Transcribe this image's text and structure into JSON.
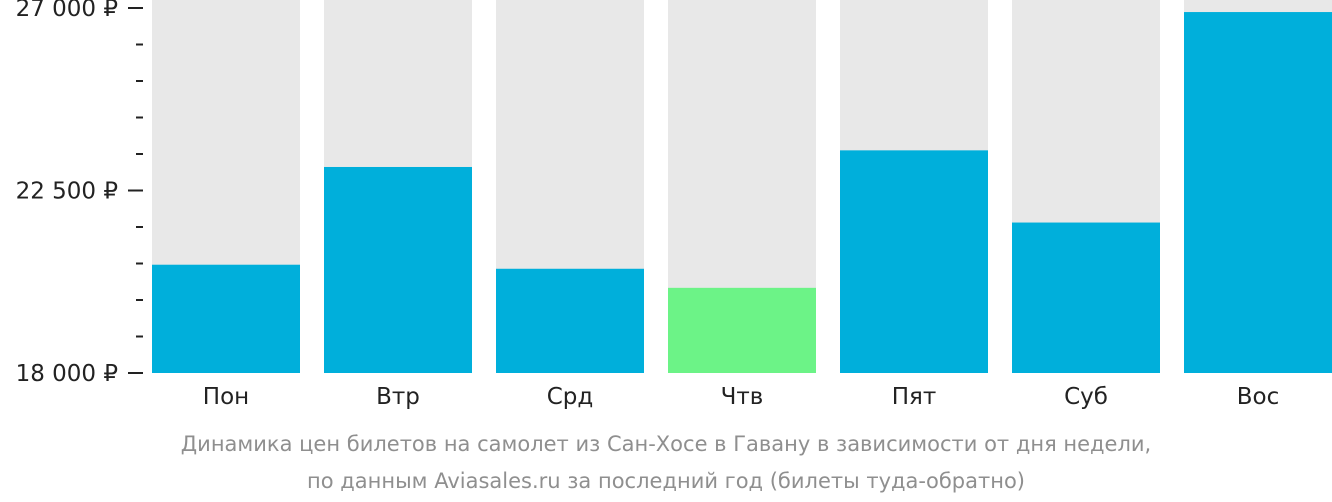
{
  "chart_data": {
    "type": "bar",
    "categories": [
      "Пон",
      "Втр",
      "Срд",
      "Чтв",
      "Пят",
      "Суб",
      "Вос"
    ],
    "values": [
      20670,
      23080,
      20570,
      20100,
      23490,
      21710,
      26900
    ],
    "ylim": [
      18000,
      27000
    ],
    "yticks": [
      18000,
      22500,
      27000
    ],
    "ytick_labels": [
      "18 000 ₽",
      "22 500 ₽",
      "27 000 ₽"
    ],
    "minor_ticks_between": 4,
    "grid": false,
    "title": "",
    "xlabel": "",
    "ylabel": "",
    "colors": {
      "bar": "#00afdb",
      "lowest": "#6cf387",
      "background_column": "#e8e8e8",
      "tick_text": "#222222",
      "caption": "#8f8f8f"
    },
    "highlight_index": 3
  },
  "caption": {
    "line1": "Динамика цен билетов на самолет из Сан-Хосе в Гавану в зависимости от дня недели,",
    "line2": "по данным Aviasales.ru за последний год (билеты туда-обратно)"
  }
}
